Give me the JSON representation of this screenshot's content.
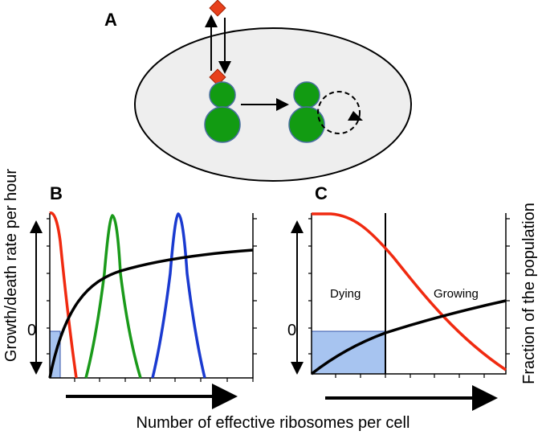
{
  "panel_a": {
    "label": "A"
  },
  "panel_b": {
    "label": "B",
    "zero_label": "0"
  },
  "panel_c": {
    "label": "C",
    "zero_label": "0",
    "left_region": "Dying",
    "right_region": "Growing"
  },
  "axes": {
    "left_title": "Growth/death rate per hour",
    "right_title": "Fraction of the population",
    "bottom_title": "Number of effective ribosomes per cell"
  }
}
